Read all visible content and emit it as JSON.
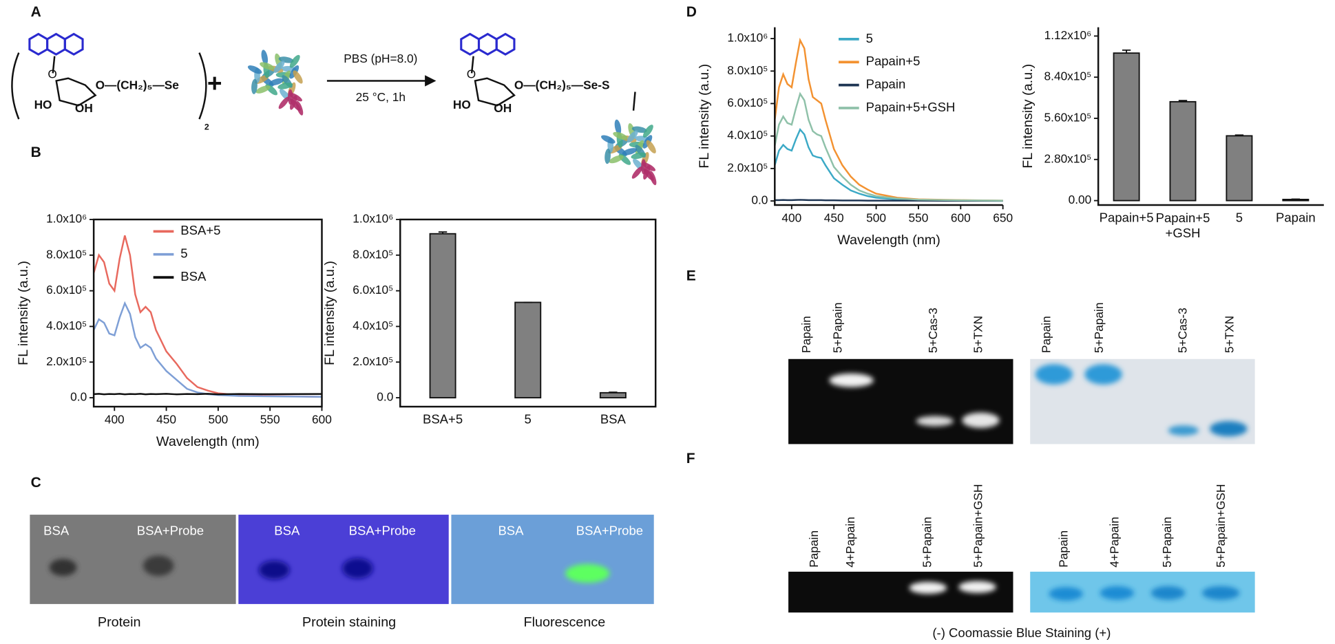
{
  "panel_labels": [
    "A",
    "B",
    "C",
    "D",
    "E",
    "F"
  ],
  "panel_a": {
    "condition_top": "PBS (pH=8.0)",
    "condition_bottom": "25 °C, 1h",
    "plus": "+",
    "reactant_chain": "O—(CH₂)₅—Se",
    "reactant_subscript": "2",
    "product_chain": "O—(CH₂)₅—Se-S",
    "ring_oxygen": "O",
    "hydroxyl_ho": "HO",
    "hydroxyl_oh": "OH"
  },
  "panel_c": {
    "gels": [
      {
        "labels": [
          "BSA",
          "BSA+Probe"
        ],
        "caption": "Protein"
      },
      {
        "labels": [
          "BSA",
          "BSA+Probe"
        ],
        "caption": "Protein staining"
      },
      {
        "labels": [
          "BSA",
          "BSA+Probe"
        ],
        "caption": "Fluorescence"
      }
    ]
  },
  "panel_e": {
    "lanes": [
      "Papain",
      "5+Papain",
      "5+Cas-3",
      "5+TXN"
    ]
  },
  "panel_f": {
    "lanes": [
      "Papain",
      "4+Papain",
      "5+Papain",
      "5+Papain+GSH"
    ],
    "caption": "(-) Coomassie Blue Staining (+)"
  },
  "chart_data": [
    {
      "type": "line",
      "x_label": "Wavelength (nm)",
      "y_label": "FL intensity (a.u.)",
      "x": [
        380,
        385,
        390,
        395,
        400,
        405,
        410,
        415,
        420,
        425,
        430,
        435,
        440,
        450,
        460,
        470,
        480,
        490,
        500,
        520,
        550,
        600
      ],
      "xlim": [
        380,
        600
      ],
      "xticks": [
        400,
        450,
        500,
        550,
        600
      ],
      "ylim": [
        -50000,
        1000000
      ],
      "yticks": [
        {
          "value": 0,
          "label": "0.0"
        },
        {
          "value": 200000,
          "label": "2.0x10⁵"
        },
        {
          "value": 400000,
          "label": "4.0x10⁵"
        },
        {
          "value": 600000,
          "label": "6.0x10⁵"
        },
        {
          "value": 800000,
          "label": "8.0x10⁵"
        },
        {
          "value": 1000000,
          "label": "1.0x10⁶"
        }
      ],
      "series": [
        {
          "name": "BSA+5",
          "color": "#e8695e",
          "values": [
            700000,
            800000,
            760000,
            640000,
            600000,
            780000,
            910000,
            800000,
            580000,
            480000,
            510000,
            480000,
            380000,
            260000,
            190000,
            110000,
            60000,
            40000,
            25000,
            15000,
            10000,
            5000
          ]
        },
        {
          "name": "5",
          "color": "#7e9fd6",
          "values": [
            380000,
            440000,
            420000,
            360000,
            350000,
            450000,
            530000,
            470000,
            340000,
            280000,
            300000,
            280000,
            220000,
            150000,
            100000,
            50000,
            30000,
            20000,
            15000,
            10000,
            8000,
            5000
          ]
        },
        {
          "name": "BSA",
          "color": "#111111",
          "values": [
            20000,
            22000,
            19000,
            21000,
            20000,
            22000,
            19000,
            21000,
            20000,
            22000,
            19000,
            21000,
            20000,
            22000,
            19000,
            21000,
            20000,
            22000,
            19000,
            21000,
            20000,
            21000
          ]
        }
      ]
    },
    {
      "type": "bar",
      "y_label": "FL intensity (a.u.)",
      "categories": [
        "BSA+5",
        "5",
        "BSA"
      ],
      "values": [
        920000,
        535000,
        28000
      ],
      "errors": [
        10000,
        0,
        3000
      ],
      "color": "#808080",
      "ylim": [
        -50000,
        1000000
      ],
      "yticks": [
        {
          "value": 0,
          "label": "0.0"
        },
        {
          "value": 200000,
          "label": "2.0x10⁵"
        },
        {
          "value": 400000,
          "label": "4.0x10⁵"
        },
        {
          "value": 600000,
          "label": "6.0x10⁵"
        },
        {
          "value": 800000,
          "label": "8.0x10⁵"
        },
        {
          "value": 1000000,
          "label": "1.0x10⁶"
        }
      ]
    },
    {
      "type": "line",
      "x_label": "Wavelength (nm)",
      "y_label": "FL intensity (a.u.)",
      "x": [
        380,
        385,
        390,
        395,
        400,
        405,
        410,
        415,
        420,
        425,
        430,
        435,
        440,
        450,
        460,
        470,
        480,
        490,
        500,
        525,
        550,
        600,
        650
      ],
      "xlim": [
        380,
        650
      ],
      "xticks": [
        400,
        450,
        500,
        550,
        600,
        650
      ],
      "ylim": [
        -25000,
        1070000
      ],
      "yticks": [
        {
          "value": 0,
          "label": "0.0"
        },
        {
          "value": 200000,
          "label": "2.0x10⁵"
        },
        {
          "value": 400000,
          "label": "4.0x10⁵"
        },
        {
          "value": 600000,
          "label": "6.0x10⁵"
        },
        {
          "value": 800000,
          "label": "8.0x10⁵"
        },
        {
          "value": 1000000,
          "label": "1.0x10⁶"
        }
      ],
      "series": [
        {
          "name": "5",
          "color": "#3ba9c6",
          "values": [
            220000,
            310000,
            345000,
            320000,
            310000,
            380000,
            440000,
            410000,
            330000,
            280000,
            270000,
            265000,
            220000,
            140000,
            100000,
            65000,
            45000,
            30000,
            20000,
            10000,
            5000,
            2000,
            1000
          ]
        },
        {
          "name": "Papain+5",
          "color": "#f39231",
          "values": [
            500000,
            700000,
            780000,
            720000,
            700000,
            850000,
            990000,
            940000,
            750000,
            640000,
            620000,
            600000,
            500000,
            320000,
            220000,
            150000,
            100000,
            70000,
            45000,
            20000,
            10000,
            5000,
            2000
          ]
        },
        {
          "name": "Papain",
          "color": "#1e3553",
          "values": [
            5000,
            5000,
            6000,
            5000,
            5000,
            6000,
            7000,
            6000,
            5000,
            5000,
            5000,
            5000,
            4000,
            4000,
            3000,
            3000,
            3000,
            2000,
            2000,
            2000,
            2000,
            1000,
            1000
          ]
        },
        {
          "name": "Papain+5+GSH",
          "color": "#8fc1a9",
          "values": [
            340000,
            470000,
            520000,
            480000,
            470000,
            570000,
            660000,
            620000,
            500000,
            430000,
            410000,
            400000,
            330000,
            210000,
            150000,
            100000,
            65000,
            45000,
            30000,
            15000,
            8000,
            4000,
            2000
          ]
        }
      ]
    },
    {
      "type": "bar",
      "y_label": "FL intensity (a.u.)",
      "categories": [
        "Papain+5",
        "Papain+5\n+GSH",
        "5",
        "Papain"
      ],
      "values": [
        1004000,
        673000,
        441000,
        8000
      ],
      "errors": [
        20000,
        8000,
        5000,
        2000
      ],
      "color": "#808080",
      "ylim": [
        -30000,
        1180000
      ],
      "yticks": [
        {
          "value": 0,
          "label": "0.00"
        },
        {
          "value": 280000,
          "label": "2.80x10⁵"
        },
        {
          "value": 560000,
          "label": "5.60x10⁵"
        },
        {
          "value": 840000,
          "label": "8.40x10⁵"
        },
        {
          "value": 1120000,
          "label": "1.12x10⁶"
        }
      ]
    }
  ]
}
